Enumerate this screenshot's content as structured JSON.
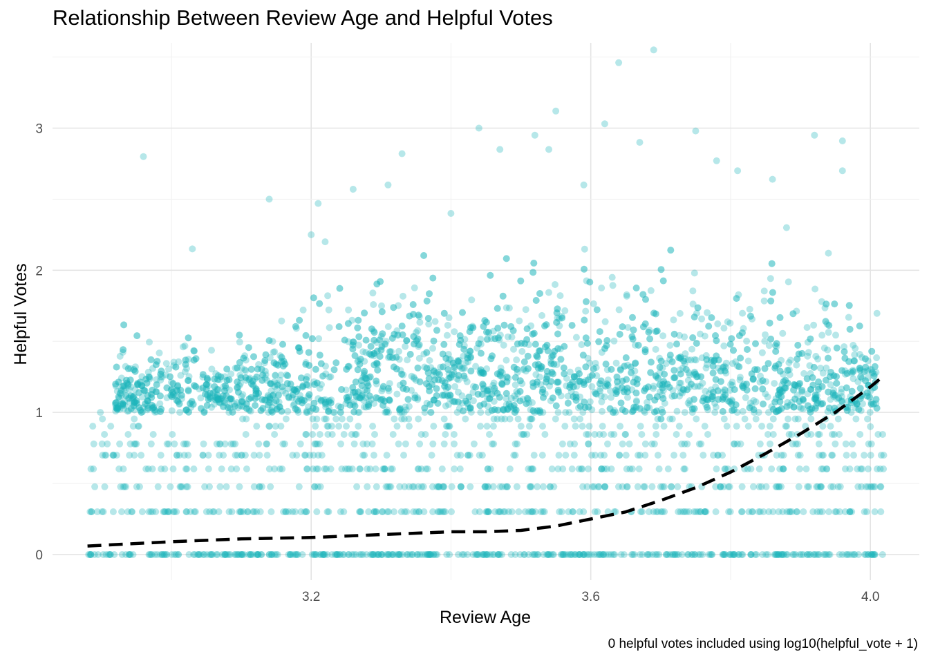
{
  "chart_data": {
    "type": "scatter",
    "title": "Relationship Between Review Age and Helpful Votes",
    "xlabel": "Review Age",
    "ylabel": "Helpful Votes",
    "caption": "0 helpful votes included using log10(helpful_vote + 1)",
    "xlim": [
      2.83,
      4.07
    ],
    "ylim": [
      -0.18,
      3.6
    ],
    "x_ticks": [
      3.2,
      3.6,
      4.0
    ],
    "x_tick_labels": [
      "3.2",
      "3.6",
      "4.0"
    ],
    "y_ticks": [
      0,
      1,
      2,
      3
    ],
    "y_tick_labels": [
      "0",
      "1",
      "2",
      "3"
    ],
    "grid": true,
    "point_color": "#1CB5BA",
    "trend_color": "#000000",
    "x_range": [
      2.88,
      4.02
    ],
    "discrete_levels": [
      0,
      0.301,
      0.477,
      0.602,
      0.699,
      0.778,
      0.845,
      0.903,
      0.954,
      1.0
    ],
    "outliers": [
      {
        "x": 2.96,
        "y": 2.8
      },
      {
        "x": 3.55,
        "y": 3.12
      },
      {
        "x": 3.62,
        "y": 3.03
      },
      {
        "x": 3.64,
        "y": 3.46
      },
      {
        "x": 3.69,
        "y": 3.55
      },
      {
        "x": 3.44,
        "y": 3.0
      },
      {
        "x": 3.75,
        "y": 2.98
      },
      {
        "x": 3.92,
        "y": 2.95
      },
      {
        "x": 3.96,
        "y": 2.91
      },
      {
        "x": 3.96,
        "y": 2.7
      },
      {
        "x": 3.33,
        "y": 2.82
      },
      {
        "x": 3.52,
        "y": 2.95
      },
      {
        "x": 3.67,
        "y": 2.9
      },
      {
        "x": 3.47,
        "y": 2.85
      },
      {
        "x": 3.78,
        "y": 2.77
      },
      {
        "x": 3.81,
        "y": 2.7
      },
      {
        "x": 3.86,
        "y": 2.64
      },
      {
        "x": 3.21,
        "y": 2.47
      },
      {
        "x": 3.14,
        "y": 2.5
      },
      {
        "x": 3.22,
        "y": 2.2
      },
      {
        "x": 3.03,
        "y": 2.15
      },
      {
        "x": 3.2,
        "y": 2.25
      },
      {
        "x": 3.26,
        "y": 2.57
      },
      {
        "x": 3.31,
        "y": 2.6
      },
      {
        "x": 3.4,
        "y": 2.4
      },
      {
        "x": 3.54,
        "y": 2.85
      },
      {
        "x": 3.59,
        "y": 2.6
      },
      {
        "x": 3.88,
        "y": 2.3
      },
      {
        "x": 3.94,
        "y": 2.12
      },
      {
        "x": 4.0,
        "y": 0.9
      }
    ],
    "trend": {
      "x": [
        2.88,
        3.0,
        3.1,
        3.2,
        3.3,
        3.4,
        3.45,
        3.5,
        3.55,
        3.6,
        3.65,
        3.7,
        3.75,
        3.8,
        3.85,
        3.9,
        3.95,
        4.0,
        4.02
      ],
      "y": [
        0.06,
        0.09,
        0.11,
        0.12,
        0.14,
        0.16,
        0.16,
        0.17,
        0.2,
        0.25,
        0.3,
        0.38,
        0.47,
        0.58,
        0.71,
        0.85,
        1.0,
        1.18,
        1.26
      ]
    }
  }
}
